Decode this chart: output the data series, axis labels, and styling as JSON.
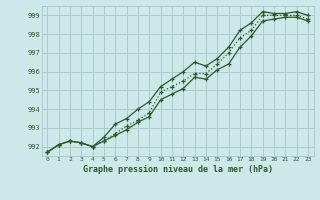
{
  "bg_color": "#cce8e8",
  "grid_color": "#aacccc",
  "line_color": "#2d5a2d",
  "title": "Graphe pression niveau de la mer (hPa)",
  "xlim": [
    -0.5,
    23.5
  ],
  "ylim": [
    991.5,
    999.5
  ],
  "yticks": [
    992,
    993,
    994,
    995,
    996,
    997,
    998,
    999
  ],
  "xticks": [
    0,
    1,
    2,
    3,
    4,
    5,
    6,
    7,
    8,
    9,
    10,
    11,
    12,
    13,
    14,
    15,
    16,
    17,
    18,
    19,
    20,
    21,
    22,
    23
  ],
  "series1": [
    991.7,
    992.1,
    992.3,
    992.2,
    992.0,
    992.3,
    992.7,
    993.1,
    993.4,
    993.8,
    994.9,
    995.2,
    995.5,
    995.9,
    995.9,
    996.4,
    997.0,
    997.8,
    998.2,
    999.0,
    999.0,
    999.0,
    999.0,
    998.8
  ],
  "series2": [
    991.7,
    992.1,
    992.3,
    992.2,
    992.0,
    992.5,
    993.2,
    993.5,
    994.0,
    994.4,
    995.2,
    995.6,
    996.0,
    996.5,
    996.3,
    996.7,
    997.3,
    998.2,
    998.6,
    999.2,
    999.1,
    999.1,
    999.2,
    999.0
  ],
  "series3": [
    991.7,
    992.1,
    992.3,
    992.2,
    992.0,
    992.3,
    992.6,
    992.9,
    993.3,
    993.6,
    994.5,
    994.8,
    995.1,
    995.7,
    995.6,
    996.1,
    996.4,
    997.3,
    997.9,
    998.7,
    998.8,
    998.9,
    998.9,
    998.7
  ]
}
